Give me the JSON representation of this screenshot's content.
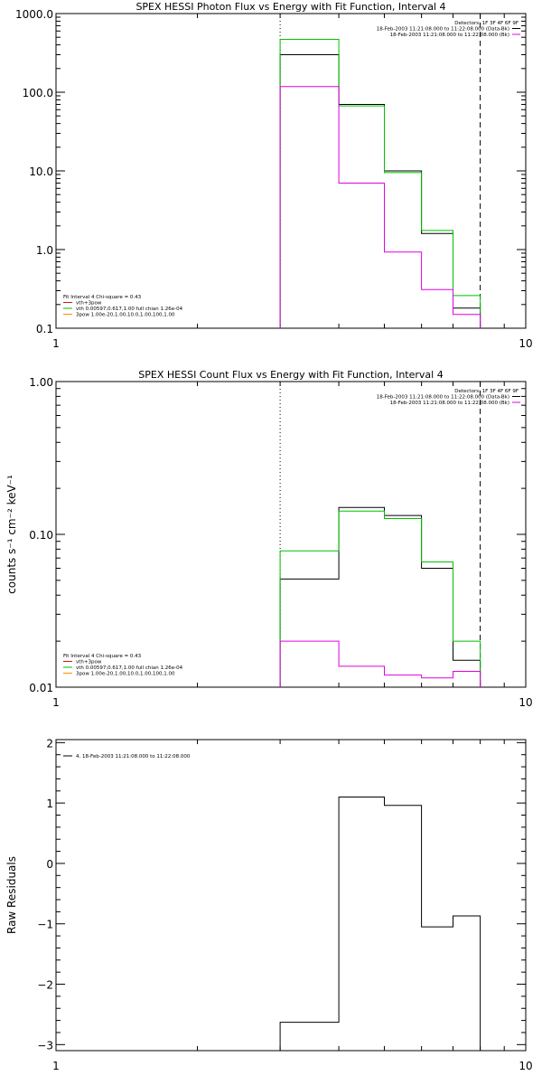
{
  "chart_data": [
    {
      "type": "line",
      "title": "SPEX HESSI Photon Flux vs Energy with Fit Function, Interval 4",
      "xscale": "log",
      "yscale": "log",
      "xlim": [
        1,
        10
      ],
      "ylim": [
        0.1,
        1000
      ],
      "xticks": [
        {
          "value": 1,
          "label": "1"
        },
        {
          "value": 10,
          "label": "10"
        }
      ],
      "yticks": [
        {
          "value": 0.1,
          "label": "0.1"
        },
        {
          "value": 1,
          "label": "1.0"
        },
        {
          "value": 10,
          "label": "10.0"
        },
        {
          "value": 100,
          "label": "100.0"
        },
        {
          "value": 1000,
          "label": "1000.0"
        }
      ],
      "vlines": [
        {
          "x": 3.0,
          "style": "dotted"
        },
        {
          "x": 8.0,
          "style": "dashed"
        }
      ],
      "legend_top_right": [
        {
          "text": "Detectors: 1F 3F 4F 6F 9F",
          "color": "#000000",
          "swatch": false
        },
        {
          "text": "18-Feb-2003 11:21:08.000 to 11:22:08.000 (Data-Bk)",
          "color": "#000000",
          "swatch": true
        },
        {
          "text": "18-Feb-2003 11:21:08.000 to 11:22:08.000 (Bk)",
          "color": "#e000e0",
          "swatch": true
        }
      ],
      "legend_bottom_left": [
        {
          "text": "Fit Interval  4    Chi-square = 0.43",
          "color": "#000000",
          "swatch": false
        },
        {
          "text": "vth+3pow",
          "color": "#e01010",
          "swatch": true
        },
        {
          "text": "vth 0.00597,0.617,1.00  full chian 1.26e-04",
          "color": "#00c000",
          "swatch": true
        },
        {
          "text": "3pow 1.00e-20,1.00,10.0,1.00,100,1.00",
          "color": "#ff8c00",
          "swatch": true
        }
      ],
      "series": [
        {
          "color": "#000000",
          "edges": [
            3,
            4,
            5,
            6,
            7,
            8
          ],
          "values": [
            300,
            70,
            10,
            1.6,
            0.18
          ]
        },
        {
          "color": "#00c000",
          "edges": [
            3,
            4,
            5,
            6,
            7,
            8
          ],
          "values": [
            470,
            67,
            9.5,
            1.75,
            0.26
          ]
        },
        {
          "color": "#e000e0",
          "edges": [
            3,
            4,
            5,
            6,
            7,
            8
          ],
          "values": [
            118,
            7,
            0.93,
            0.31,
            0.15
          ]
        }
      ]
    },
    {
      "type": "line",
      "title": "SPEX HESSI Count Flux vs Energy with Fit Function, Interval 4",
      "ylabel": "counts s⁻¹ cm⁻² keV⁻¹",
      "xscale": "log",
      "yscale": "log",
      "xlim": [
        1,
        10
      ],
      "ylim": [
        0.01,
        1.0
      ],
      "xticks": [
        {
          "value": 1,
          "label": "1"
        },
        {
          "value": 10,
          "label": "10"
        }
      ],
      "yticks": [
        {
          "value": 0.01,
          "label": "0.01"
        },
        {
          "value": 0.1,
          "label": "0.10"
        },
        {
          "value": 1,
          "label": "1.00"
        }
      ],
      "vlines": [
        {
          "x": 3.0,
          "style": "dotted"
        },
        {
          "x": 8.0,
          "style": "dashed"
        }
      ],
      "legend_top_right": [
        {
          "text": "Detectors: 1F 3F 4F 6F 9F",
          "color": "#000000",
          "swatch": false
        },
        {
          "text": "18-Feb-2003 11:21:08.000 to 11:22:08.000 (Data-Bk)",
          "color": "#000000",
          "swatch": true
        },
        {
          "text": "18-Feb-2003 11:21:08.000 to 11:22:08.000 (Bk)",
          "color": "#e000e0",
          "swatch": true
        }
      ],
      "legend_bottom_left": [
        {
          "text": "Fit Interval  4    Chi-square = 0.43",
          "color": "#000000",
          "swatch": false
        },
        {
          "text": "vth+3pow",
          "color": "#e01010",
          "swatch": true
        },
        {
          "text": "vth 0.00597,0.617,1.00  full chian 1.26e-04",
          "color": "#00c000",
          "swatch": true
        },
        {
          "text": "3pow 1.00e-20,1.00,10.0,1.00,100,1.00",
          "color": "#ff8c00",
          "swatch": true
        }
      ],
      "series": [
        {
          "color": "#000000",
          "edges": [
            3,
            4,
            5,
            6,
            7,
            8
          ],
          "values": [
            0.051,
            0.15,
            0.133,
            0.06,
            0.015
          ]
        },
        {
          "color": "#00c000",
          "edges": [
            3,
            4,
            5,
            6,
            7,
            8
          ],
          "values": [
            0.078,
            0.142,
            0.127,
            0.066,
            0.02
          ]
        },
        {
          "color": "#e000e0",
          "edges": [
            3,
            4,
            5,
            6,
            7,
            8
          ],
          "values": [
            0.02,
            0.0137,
            0.012,
            0.0115,
            0.0127
          ]
        }
      ]
    },
    {
      "type": "line",
      "title": "",
      "ylabel": "Raw Residuals",
      "xscale": "log",
      "yscale": "linear",
      "xlim": [
        1,
        10
      ],
      "ylim": [
        -3.1,
        2.05
      ],
      "xticks": [
        {
          "value": 1,
          "label": "1"
        },
        {
          "value": 10,
          "label": "10"
        }
      ],
      "yticks": [
        {
          "value": -3,
          "label": "−3"
        },
        {
          "value": -2,
          "label": "−2"
        },
        {
          "value": -1,
          "label": "−1"
        },
        {
          "value": 0,
          "label": "0"
        },
        {
          "value": 1,
          "label": "1"
        },
        {
          "value": 2,
          "label": "2"
        }
      ],
      "vlines": [],
      "legend_top_left": [
        {
          "text": "4. 18-Feb-2003 11:21:08.000 to 11:22:08.000",
          "color": "#000000",
          "swatch": true
        }
      ],
      "series": [
        {
          "color": "#000000",
          "edges": [
            3,
            4,
            5,
            6,
            7,
            8
          ],
          "values": [
            -2.63,
            1.1,
            0.96,
            -1.05,
            -0.87
          ]
        }
      ]
    }
  ]
}
